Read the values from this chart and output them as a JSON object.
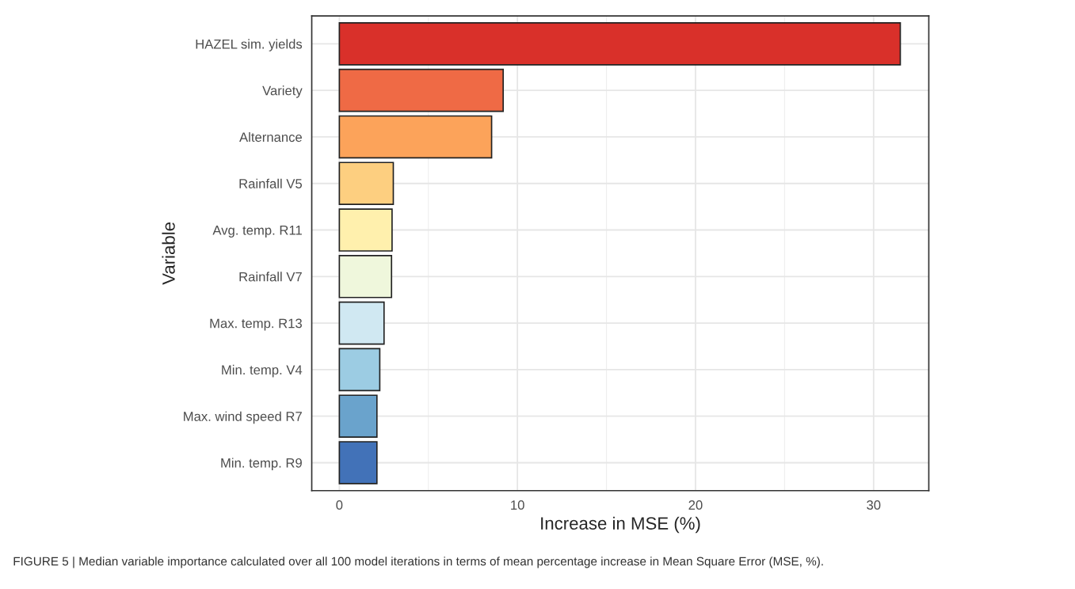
{
  "chart_data": {
    "type": "bar",
    "orientation": "horizontal",
    "xlabel": "Increase in MSE (%)",
    "ylabel": "Variable",
    "categories": [
      "HAZEL sim. yields",
      "Variety",
      "Alternance",
      "Rainfall V5",
      "Avg. temp. R11",
      "Rainfall V7",
      "Max. temp. R13",
      "Min. temp. V4",
      "Max. wind speed R7",
      "Min. temp. R9"
    ],
    "values": [
      31.5,
      9.2,
      8.55,
      3.03,
      2.96,
      2.93,
      2.51,
      2.27,
      2.11,
      2.11
    ],
    "colors": [
      "#d9302a",
      "#ef6a45",
      "#fca35a",
      "#fdcf80",
      "#fff0ad",
      "#eff7dc",
      "#d0e8f2",
      "#9ccce3",
      "#6aa3cc",
      "#4272b8"
    ],
    "xlim": [
      -1.55,
      33.1
    ],
    "xticks": [
      0,
      {
        "value": 5,
        "label": null
      },
      10,
      {
        "value": 15,
        "label": null
      },
      20,
      {
        "value": 25,
        "label": null
      },
      30
    ],
    "grid": true,
    "annotations": [
      "FIGURE 5 | Median variable importance calculated over all 100 model iterations in terms of mean percentage increase in Mean Square Error (MSE, %)."
    ]
  }
}
